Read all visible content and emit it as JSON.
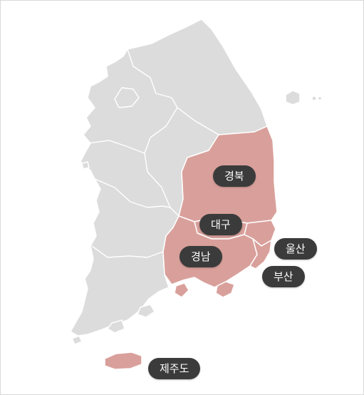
{
  "map": {
    "colors": {
      "base_region": "#dcdcdc",
      "highlight_region": "#d9a09b",
      "label_background": "#3b3b3b",
      "label_text": "#ffffff",
      "border": "#ffffff"
    },
    "highlighted_regions": [
      "경북",
      "대구",
      "경남",
      "울산",
      "부산",
      "제주도"
    ],
    "labels": {
      "gyeongbuk": "경북",
      "daegu": "대구",
      "gyeongnam": "경남",
      "ulsan": "울산",
      "busan": "부산",
      "jeju": "제주도"
    }
  }
}
